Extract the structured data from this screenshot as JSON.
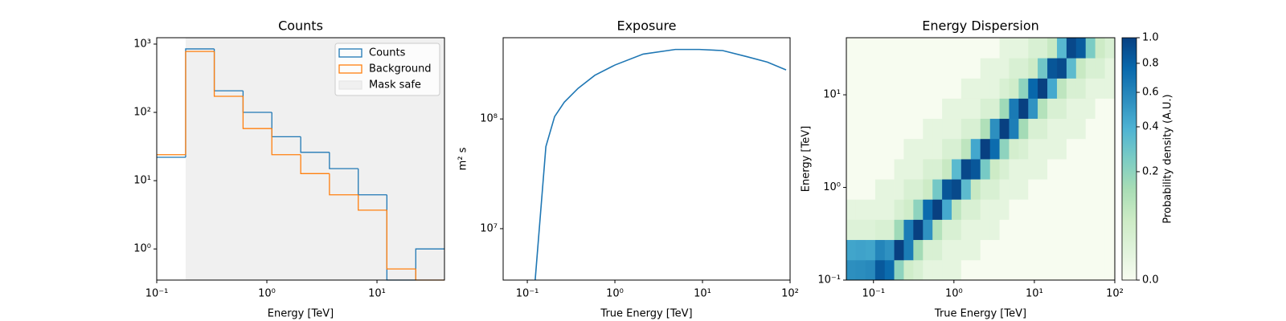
{
  "chart_data": [
    {
      "type": "histogram",
      "title": "Counts",
      "xlabel": "Energy [TeV]",
      "xscale": "log",
      "yscale": "log",
      "bins": [
        0.1,
        0.183,
        0.333,
        0.608,
        1.11,
        2.03,
        3.7,
        6.76,
        12.3,
        22.5,
        41
      ],
      "series": [
        {
          "name": "Counts",
          "color": "#1f77b4",
          "values": [
            22,
            850,
            207,
            100,
            44,
            26,
            15,
            6.2,
            0,
            1
          ]
        },
        {
          "name": "Background",
          "color": "#ff7f0e",
          "values": [
            24,
            780,
            172,
            58,
            24,
            12.7,
            6.2,
            3.7,
            0.51,
            0
          ]
        }
      ],
      "mask_safe": {
        "name": "Mask safe",
        "color": "#f0f0f0",
        "range": [
          0.183,
          41
        ]
      },
      "xlim": [
        0.1,
        41
      ],
      "ylim": [
        0.35,
        1240
      ],
      "xticks": [
        {
          "value": 0.1,
          "label": "10⁻¹"
        },
        {
          "value": 1,
          "label": "10⁰"
        },
        {
          "value": 10,
          "label": "10¹"
        }
      ],
      "yticks": [
        {
          "value": 1,
          "label": "10⁰"
        },
        {
          "value": 10,
          "label": "10¹"
        },
        {
          "value": 100,
          "label": "10²"
        },
        {
          "value": 1000,
          "label": "10³"
        }
      ],
      "legend": "upper right"
    },
    {
      "type": "line",
      "title": "Exposure",
      "xlabel": "True Energy [TeV]",
      "ylabel": "m² s",
      "xscale": "log",
      "yscale": "log",
      "x": [
        0.123,
        0.163,
        0.205,
        0.264,
        0.38,
        0.59,
        1.0,
        2.1,
        4.9,
        9.2,
        17,
        32,
        55,
        90
      ],
      "values": [
        3400000,
        56000000,
        105000000,
        142000000,
        190000000,
        250000000,
        310000000,
        390000000,
        430000000,
        430000000,
        420000000,
        370000000,
        330000000,
        280000000
      ],
      "color": "#1f77b4",
      "xlim": [
        0.053,
        100
      ],
      "ylim": [
        3400000,
        550000000
      ],
      "xticks": [
        {
          "value": 0.1,
          "label": "10⁻¹"
        },
        {
          "value": 1,
          "label": "10⁰"
        },
        {
          "value": 10,
          "label": "10¹"
        },
        {
          "value": 100,
          "label": "10²"
        }
      ],
      "yticks": [
        {
          "value": 10000000,
          "label": "10⁷"
        },
        {
          "value": 100000000,
          "label": "10⁸"
        }
      ]
    },
    {
      "type": "heatmap",
      "title": "Energy Dispersion",
      "xlabel": "True Energy [TeV]",
      "ylabel": "Energy [TeV]",
      "xscale": "log",
      "yscale": "log",
      "x_edges": [
        0.046,
        0.0605,
        0.0796,
        0.105,
        0.138,
        0.181,
        0.238,
        0.313,
        0.412,
        0.542,
        0.713,
        0.938,
        1.23,
        1.62,
        2.13,
        2.81,
        3.69,
        4.85,
        6.38,
        8.39,
        11.0,
        14.5,
        19.1,
        25.1,
        33.0,
        43.4,
        57.1,
        75.2,
        100
      ],
      "y_edges": [
        0.1,
        0.165,
        0.273,
        0.451,
        0.745,
        1.23,
        2.03,
        3.36,
        5.55,
        9.16,
        15.1,
        25.0,
        41.3
      ],
      "z": [
        [
          0.55,
          0.56,
          0.58,
          0.85,
          0.75,
          0.2,
          0.05,
          0.03,
          0.01,
          0.01,
          0.01,
          0.01,
          0,
          0,
          0,
          0,
          0,
          0,
          0,
          0,
          0,
          0,
          0,
          0,
          0,
          0,
          0,
          0
        ],
        [
          0.45,
          0.46,
          0.45,
          0.6,
          0.54,
          1.0,
          0.65,
          0.15,
          0.03,
          0.03,
          0.01,
          0.01,
          0.01,
          0.01,
          0,
          0,
          0,
          0,
          0,
          0,
          0,
          0,
          0,
          0,
          0,
          0,
          0,
          0
        ],
        [
          0.02,
          0.02,
          0.02,
          0.03,
          0.03,
          0.16,
          0.65,
          1.0,
          0.54,
          0.11,
          0.03,
          0.03,
          0.01,
          0.01,
          0.01,
          0.01,
          0,
          0,
          0,
          0,
          0,
          0,
          0,
          0,
          0,
          0,
          0,
          0
        ],
        [
          0.01,
          0.01,
          0.01,
          0.01,
          0.01,
          0.03,
          0.05,
          0.2,
          0.75,
          1.0,
          0.43,
          0.09,
          0.03,
          0.03,
          0.01,
          0.01,
          0.01,
          0,
          0,
          0,
          0,
          0,
          0,
          0,
          0,
          0,
          0,
          0
        ],
        [
          0,
          0,
          0,
          0.01,
          0.01,
          0.01,
          0.03,
          0.03,
          0.06,
          0.27,
          0.87,
          0.94,
          0.34,
          0.07,
          0.03,
          0.03,
          0.01,
          0.01,
          0.01,
          0,
          0,
          0,
          0,
          0,
          0,
          0,
          0,
          0
        ],
        [
          0,
          0,
          0,
          0,
          0,
          0.01,
          0.01,
          0.01,
          0.03,
          0.03,
          0.07,
          0.35,
          0.95,
          0.86,
          0.26,
          0.06,
          0.03,
          0.01,
          0.01,
          0.01,
          0.01,
          0,
          0,
          0,
          0,
          0,
          0,
          0
        ],
        [
          0,
          0,
          0,
          0,
          0,
          0,
          0.01,
          0.01,
          0.01,
          0.01,
          0.03,
          0.03,
          0.09,
          0.44,
          1.0,
          0.74,
          0.2,
          0.04,
          0.03,
          0.01,
          0.01,
          0.01,
          0.01,
          0,
          0,
          0,
          0,
          0
        ],
        [
          0,
          0,
          0,
          0,
          0,
          0,
          0,
          0,
          0.01,
          0.01,
          0.01,
          0.01,
          0.03,
          0.03,
          0.12,
          0.55,
          1.0,
          0.64,
          0.15,
          0.03,
          0.03,
          0.01,
          0.01,
          0.01,
          0.01,
          0,
          0,
          0
        ],
        [
          0,
          0,
          0,
          0,
          0,
          0,
          0,
          0,
          0,
          0,
          0.01,
          0.01,
          0.01,
          0.01,
          0.03,
          0.03,
          0.16,
          0.66,
          1.0,
          0.53,
          0.11,
          0.03,
          0.03,
          0.01,
          0.01,
          0.01,
          0,
          0
        ],
        [
          0,
          0,
          0,
          0,
          0,
          0,
          0,
          0,
          0,
          0,
          0,
          0,
          0.01,
          0.01,
          0.01,
          0.01,
          0.03,
          0.05,
          0.2,
          0.77,
          1.0,
          0.43,
          0.09,
          0.03,
          0.03,
          0.01,
          0.01,
          0.01
        ],
        [
          0,
          0,
          0,
          0,
          0,
          0,
          0,
          0,
          0,
          0,
          0,
          0,
          0,
          0,
          0.01,
          0.01,
          0.01,
          0.03,
          0.03,
          0.06,
          0.28,
          0.87,
          0.93,
          0.34,
          0.07,
          0.03,
          0.03,
          0.01
        ],
        [
          0,
          0,
          0,
          0,
          0,
          0,
          0,
          0,
          0,
          0,
          0,
          0,
          0,
          0,
          0,
          0,
          0.01,
          0.01,
          0.01,
          0.03,
          0.03,
          0.07,
          0.36,
          0.95,
          0.84,
          0.25,
          0.06,
          0.03
        ]
      ],
      "xlim": [
        0.046,
        100
      ],
      "ylim": [
        0.1,
        41.3
      ],
      "xticks": [
        {
          "value": 0.1,
          "label": "10⁻¹"
        },
        {
          "value": 1,
          "label": "10⁰"
        },
        {
          "value": 10,
          "label": "10¹"
        },
        {
          "value": 100,
          "label": "10²"
        }
      ],
      "yticks": [
        {
          "value": 0.1,
          "label": "10⁻¹"
        },
        {
          "value": 1,
          "label": "10⁰"
        },
        {
          "value": 10,
          "label": "10¹"
        }
      ],
      "colorbar": {
        "label": "Probability density (A.U.)",
        "lim": [
          0,
          1
        ],
        "gamma": 0.5,
        "ticks": [
          {
            "value": 0,
            "label": "0.0"
          },
          {
            "value": 0.2,
            "label": "0.2"
          },
          {
            "value": 0.4,
            "label": "0.4"
          },
          {
            "value": 0.6,
            "label": "0.6"
          },
          {
            "value": 0.8,
            "label": "0.8"
          },
          {
            "value": 1,
            "label": "1.0"
          }
        ],
        "colormap": [
          "#f7fcf0",
          "#e0f3db",
          "#ccebc5",
          "#a8ddb5",
          "#7bccc4",
          "#4eb3d3",
          "#2b8cbe",
          "#0868ac",
          "#084081"
        ]
      }
    }
  ]
}
